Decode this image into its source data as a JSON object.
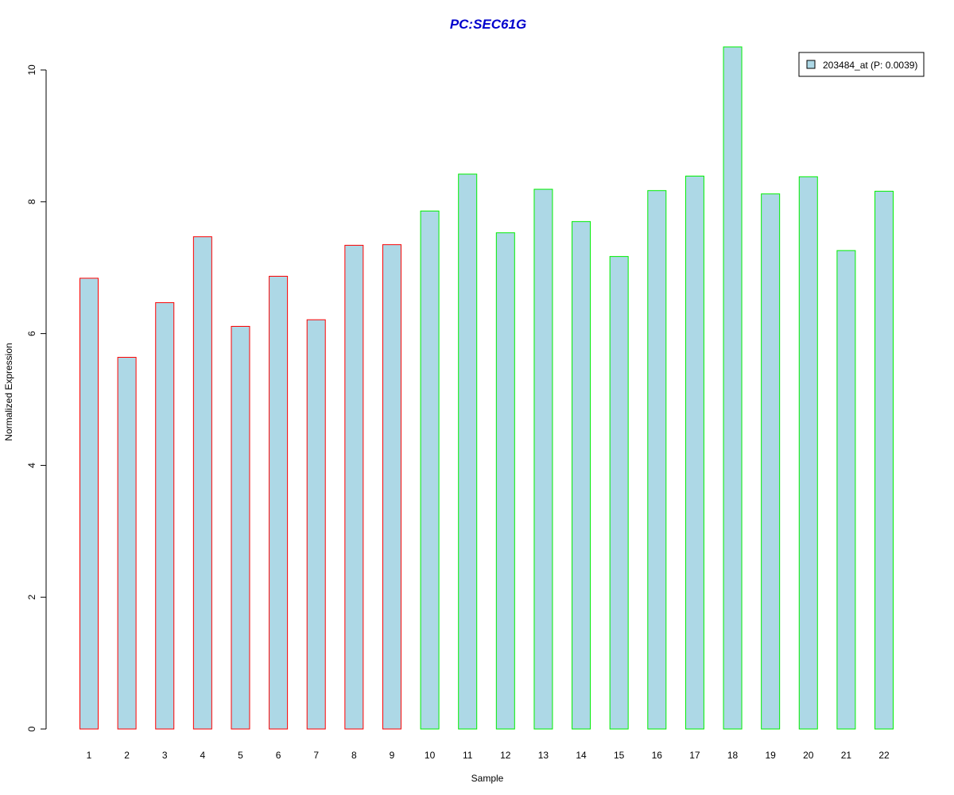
{
  "chart_data": {
    "type": "bar",
    "title": "PC:SEC61G",
    "xlabel": "Sample",
    "ylabel": "Normalized Expression",
    "categories": [
      "1",
      "2",
      "3",
      "4",
      "5",
      "6",
      "7",
      "8",
      "9",
      "10",
      "11",
      "12",
      "13",
      "14",
      "15",
      "16",
      "17",
      "18",
      "19",
      "20",
      "21",
      "22"
    ],
    "series": [
      {
        "name": "203484_at (P: 0.0039)",
        "values": [
          6.84,
          5.64,
          6.47,
          7.47,
          6.11,
          6.87,
          6.21,
          7.34,
          7.35,
          7.86,
          8.42,
          7.53,
          8.19,
          7.7,
          7.17,
          8.17,
          8.39,
          10.35,
          8.12,
          8.38,
          7.26,
          8.16
        ]
      }
    ],
    "group_edge_colors": [
      "#ff0000",
      "#ff0000",
      "#ff0000",
      "#ff0000",
      "#ff0000",
      "#ff0000",
      "#ff0000",
      "#ff0000",
      "#ff0000",
      "#00ee00",
      "#00ee00",
      "#00ee00",
      "#00ee00",
      "#00ee00",
      "#00ee00",
      "#00ee00",
      "#00ee00",
      "#00ee00",
      "#00ee00",
      "#00ee00",
      "#00ee00",
      "#00ee00"
    ],
    "yticks": [
      "0",
      "2",
      "4",
      "6",
      "8",
      "10"
    ],
    "ylim": [
      0,
      10.35
    ],
    "grid": false,
    "legend_position": "top-right",
    "colors": {
      "bar_fill": "#add8e6",
      "title": "#0000cd",
      "axis": "#000000"
    }
  }
}
